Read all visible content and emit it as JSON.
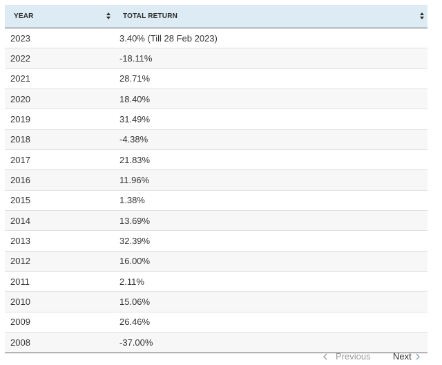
{
  "table": {
    "columns": [
      {
        "label": "YEAR"
      },
      {
        "label": "TOTAL RETURN"
      }
    ],
    "rows": [
      {
        "year": "2023",
        "return": "3.40% (Till 28 Feb 2023)"
      },
      {
        "year": "2022",
        "return": "-18.11%"
      },
      {
        "year": "2021",
        "return": "28.71%"
      },
      {
        "year": "2020",
        "return": "18.40%"
      },
      {
        "year": "2019",
        "return": "31.49%"
      },
      {
        "year": "2018",
        "return": "-4.38%"
      },
      {
        "year": "2017",
        "return": "21.83%"
      },
      {
        "year": "2016",
        "return": "11.96%"
      },
      {
        "year": "2015",
        "return": "1.38%"
      },
      {
        "year": "2014",
        "return": "13.69%"
      },
      {
        "year": "2013",
        "return": "32.39%"
      },
      {
        "year": "2012",
        "return": "16.00%"
      },
      {
        "year": "2011",
        "return": "2.11%"
      },
      {
        "year": "2010",
        "return": "15.06%"
      },
      {
        "year": "2009",
        "return": "26.46%"
      },
      {
        "year": "2008",
        "return": "-37.00%"
      }
    ]
  },
  "pagination": {
    "previous_label": "Previous",
    "next_label": "Next",
    "previous_icon": "chevron-left-icon",
    "next_icon": "chevron-right-icon"
  },
  "colors": {
    "header_bg": "#dcebf4",
    "row_alt_bg": "#f7f7f7",
    "text": "#333333",
    "disabled_text": "#9a9a9a"
  }
}
